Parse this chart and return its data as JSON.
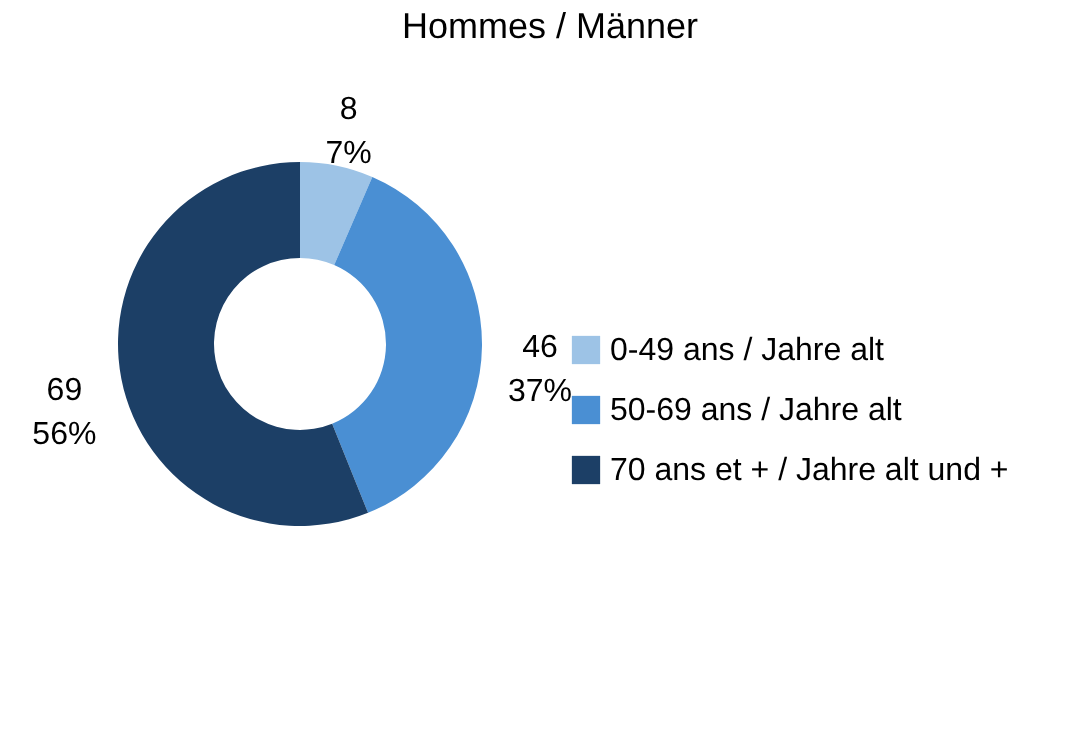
{
  "chart_data": {
    "type": "donut",
    "title": "Hommes / Männer",
    "categories": [
      "0-49 ans / Jahre alt",
      "50-69 ans / Jahre alt",
      "70 ans et + / Jahre alt und +"
    ],
    "values": [
      8,
      46,
      69
    ],
    "colors": [
      "#9dc3e6",
      "#4a8fd3",
      "#1c3f66"
    ],
    "value_labels": [
      "8\n7%",
      "46\n37%",
      "69\n56%"
    ],
    "legend": "right"
  }
}
